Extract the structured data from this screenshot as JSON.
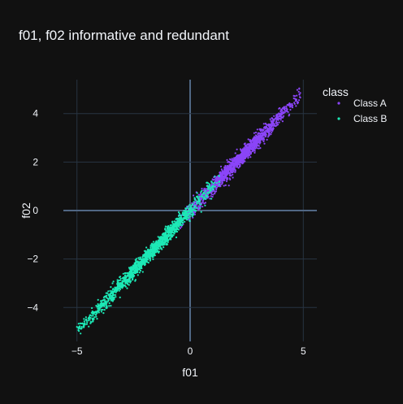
{
  "chart_data": {
    "type": "scatter",
    "title": "f01, f02 informative and redundant",
    "xlabel": "f01",
    "ylabel": "f02",
    "xlim": [
      -5.6,
      5.6
    ],
    "ylim": [
      -5.4,
      5.4
    ],
    "xticks": [
      -5,
      0,
      5
    ],
    "yticks": [
      -4,
      -2,
      0,
      2,
      4
    ],
    "grid": true,
    "legend": {
      "title": "class",
      "placement": "right"
    },
    "series": [
      {
        "name": "Class A",
        "color": "#8b45f8",
        "trend": {
          "x_range": [
            -0.6,
            4.9
          ],
          "slope": 0.98,
          "spread": 0.16
        },
        "sample": [
          [
            -0.5,
            -0.2
          ],
          [
            0.2,
            0.1
          ],
          [
            0.8,
            0.7
          ],
          [
            1.2,
            1.1
          ],
          [
            1.6,
            1.5
          ],
          [
            2.0,
            1.9
          ],
          [
            2.4,
            2.3
          ],
          [
            2.8,
            2.8
          ],
          [
            3.2,
            3.1
          ],
          [
            3.6,
            3.5
          ],
          [
            4.0,
            3.9
          ],
          [
            4.5,
            4.4
          ],
          [
            4.8,
            4.9
          ]
        ]
      },
      {
        "name": "Class B",
        "color": "#1de9b6",
        "trend": {
          "x_range": [
            -5.0,
            1.3
          ],
          "slope": 1.0,
          "spread": 0.16
        },
        "sample": [
          [
            -5.0,
            -4.8
          ],
          [
            -4.6,
            -4.4
          ],
          [
            -4.0,
            -3.9
          ],
          [
            -3.5,
            -3.4
          ],
          [
            -3.0,
            -2.9
          ],
          [
            -2.5,
            -2.4
          ],
          [
            -2.0,
            -1.9
          ],
          [
            -1.5,
            -1.5
          ],
          [
            -1.0,
            -0.9
          ],
          [
            -0.5,
            -0.4
          ],
          [
            0.0,
            0.1
          ],
          [
            0.5,
            0.6
          ],
          [
            1.0,
            1.0
          ],
          [
            1.3,
            1.2
          ]
        ]
      }
    ]
  }
}
